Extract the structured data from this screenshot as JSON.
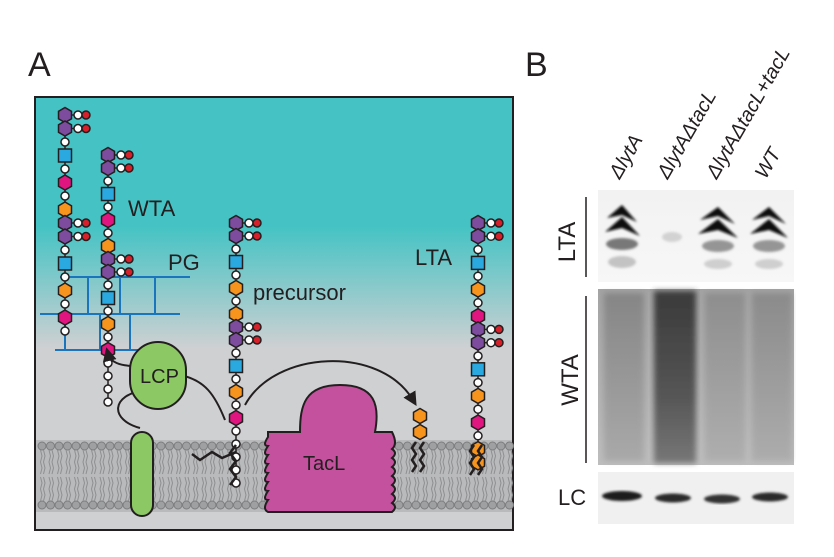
{
  "panels": {
    "a_label": "A",
    "b_label": "B"
  },
  "diagram": {
    "labels": {
      "wta": "WTA",
      "pg": "PG",
      "precursor": "precursor",
      "lta": "LTA",
      "lcp": "LCP",
      "tacl": "TacL"
    },
    "colors": {
      "teal": "#45c3c4",
      "membrane_bg": "#cfd0d2",
      "purple": "#7d4c9e",
      "magenta": "#e0157f",
      "orange": "#f7941d",
      "blue": "#29a9e0",
      "red": "#d6202a",
      "pg_blue": "#1b75bc",
      "lcp_green": "#8cc863",
      "tacl_pink": "#c4519d",
      "lipid_grey": "#8e8f91"
    }
  },
  "blot": {
    "lanes": [
      "ΔlytA",
      "ΔlytAΔtacL",
      "ΔlytAΔtacL+tacL",
      "WT"
    ],
    "rows": {
      "lta": "LTA",
      "wta": "WTA",
      "lc": "LC"
    }
  }
}
